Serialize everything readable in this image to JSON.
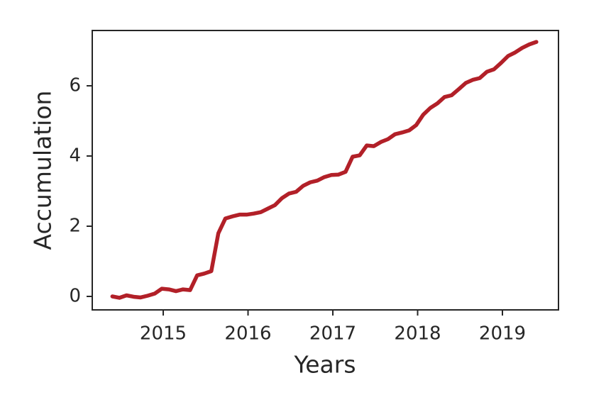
{
  "chart_data": {
    "type": "line",
    "xlabel": "Years",
    "ylabel": "Accumulation",
    "x": [
      2014.4,
      2014.483,
      2014.567,
      2014.65,
      2014.733,
      2014.817,
      2014.9,
      2014.983,
      2015.067,
      2015.15,
      2015.233,
      2015.317,
      2015.4,
      2015.483,
      2015.567,
      2015.65,
      2015.733,
      2015.817,
      2015.9,
      2015.983,
      2016.067,
      2016.15,
      2016.233,
      2016.317,
      2016.4,
      2016.483,
      2016.567,
      2016.65,
      2016.733,
      2016.817,
      2016.9,
      2016.983,
      2017.067,
      2017.15,
      2017.233,
      2017.317,
      2017.4,
      2017.483,
      2017.567,
      2017.65,
      2017.733,
      2017.817,
      2017.9,
      2017.983,
      2018.067,
      2018.15,
      2018.233,
      2018.317,
      2018.4,
      2018.483,
      2018.567,
      2018.65,
      2018.733,
      2018.817,
      2018.9,
      2018.983,
      2019.067,
      2019.15,
      2019.233,
      2019.317,
      2019.4
    ],
    "series": [
      {
        "color": "#b22028",
        "values": [
          0.0,
          -0.04,
          0.03,
          -0.01,
          -0.03,
          0.02,
          0.08,
          0.22,
          0.2,
          0.15,
          0.2,
          0.18,
          0.6,
          0.65,
          0.72,
          1.8,
          2.22,
          2.28,
          2.33,
          2.33,
          2.36,
          2.4,
          2.5,
          2.6,
          2.8,
          2.93,
          2.98,
          3.15,
          3.25,
          3.3,
          3.4,
          3.46,
          3.47,
          3.55,
          3.98,
          4.02,
          4.3,
          4.28,
          4.4,
          4.48,
          4.62,
          4.67,
          4.73,
          4.88,
          5.18,
          5.37,
          5.5,
          5.68,
          5.73,
          5.9,
          6.08,
          6.17,
          6.22,
          6.4,
          6.47,
          6.65,
          6.85,
          6.95,
          7.08,
          7.18,
          7.25
        ]
      }
    ],
    "xlim": [
      2014.163,
      2019.661
    ],
    "xticks": [
      2015,
      2016,
      2017,
      2018,
      2019
    ],
    "ylim": [
      -0.384,
      7.576
    ],
    "yticks": [
      0,
      2,
      4,
      6
    ],
    "grid": false
  }
}
